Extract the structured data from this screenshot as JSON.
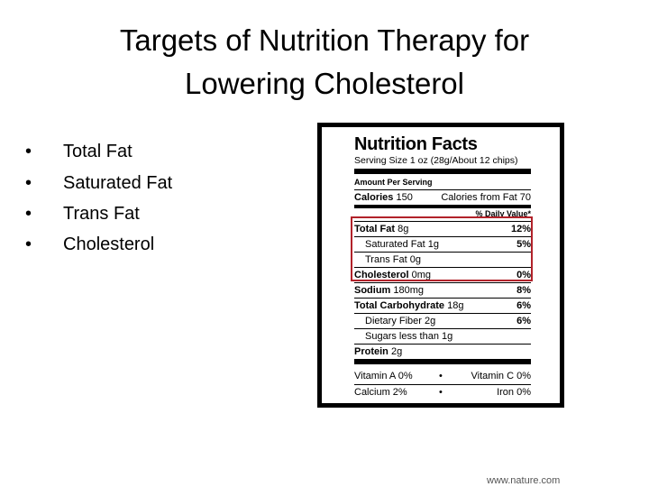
{
  "title": [
    "Targets of Nutrition Therapy for",
    "Lowering Cholesterol"
  ],
  "bullets": [
    "Total Fat",
    "Saturated Fat",
    "Trans Fat",
    "Cholesterol"
  ],
  "nutrition_label": {
    "heading": "Nutrition Facts",
    "serving": "Serving Size 1 oz (28g/About 12 chips)",
    "amount_per_serving": "Amount Per Serving",
    "calories": {
      "label": "Calories",
      "value": "150"
    },
    "calories_from_fat": {
      "label": "Calories from Fat",
      "value": "70"
    },
    "daily_value_header": "% Daily Value*",
    "rows": [
      {
        "name": "Total Fat",
        "amount": "8g",
        "dv": "12%"
      },
      {
        "name": "Saturated Fat",
        "amount": "1g",
        "dv": "5%"
      },
      {
        "name": "Trans Fat",
        "amount": "0g"
      },
      {
        "name": "Cholesterol",
        "amount": "0mg",
        "dv": "0%"
      },
      {
        "name": "Sodium",
        "amount": "180mg",
        "dv": "8%"
      },
      {
        "name": "Total Carbohydrate",
        "amount": "18g",
        "dv": "6%"
      },
      {
        "name": "Dietary Fiber",
        "amount": "2g",
        "dv": "6%"
      },
      {
        "name": "Sugars",
        "amount": "less than 1g"
      },
      {
        "name": "Protein",
        "amount": "2g"
      }
    ],
    "vitamins": [
      {
        "name": "Vitamin A",
        "dv": "0%"
      },
      {
        "name": "Vitamin C",
        "dv": "0%"
      },
      {
        "name": "Calcium",
        "dv": "2%"
      },
      {
        "name": "Iron",
        "dv": "0%"
      }
    ]
  },
  "footer": "www.nature.com"
}
